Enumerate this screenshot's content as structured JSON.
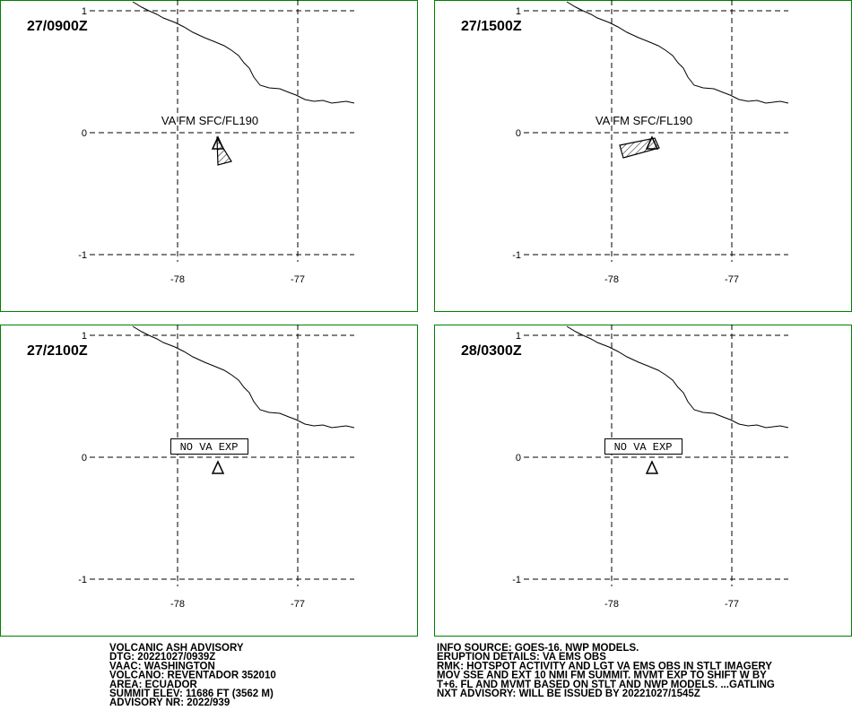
{
  "panels": [
    {
      "label": "27/0900Z",
      "annotation": "VA FM SFC/FL190"
    },
    {
      "label": "27/1500Z",
      "annotation": "VA FM SFC/FL190"
    },
    {
      "label": "27/2100Z",
      "annotation": "NO VA EXP"
    },
    {
      "label": "28/0300Z",
      "annotation": "NO VA EXP"
    }
  ],
  "lat_ticks": [
    1,
    0,
    -1
  ],
  "lon_ticks": [
    -78,
    -77
  ],
  "advisory_left": [
    "VOLCANIC ASH ADVISORY",
    "DTG: 20221027/0939Z",
    "VAAC: WASHINGTON",
    "VOLCANO: REVENTADOR 352010",
    "AREA: ECUADOR",
    "SUMMIT ELEV: 11686 FT (3562 M)",
    "ADVISORY NR: 2022/939"
  ],
  "advisory_right": [
    "INFO SOURCE: GOES-16. NWP MODELS.",
    "ERUPTION DETAILS: VA EMS OBS",
    "RMK: HOTSPOT ACTIVITY AND LGT VA EMS OBS IN STLT IMAGERY",
    "MOV SSE AND EXT 10 NMI FM SUMMIT. MVMT EXP TO SHIFT W BY",
    "T+6. FL AND MVMT BASED ON STLT AND NWP MODELS. ...GATLING",
    "NXT ADVISORY: WILL BE ISSUED BY 20221027/1545Z"
  ]
}
